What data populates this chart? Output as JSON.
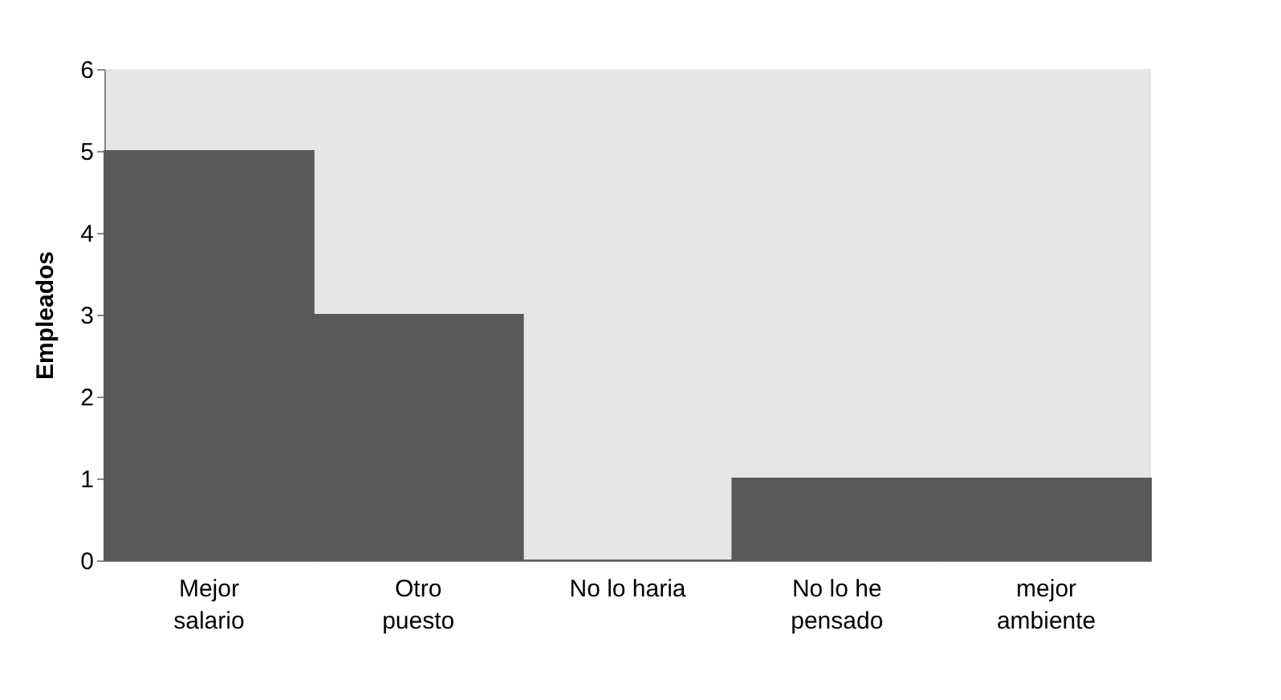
{
  "chart_data": {
    "type": "bar",
    "ylabel": "Empleados",
    "categories": [
      "Mejor\nsalario",
      "Otro\npuesto",
      "No lo haria",
      "No lo he\npensado",
      "mejor\nambiente"
    ],
    "values": [
      5,
      3,
      0,
      1,
      1
    ],
    "color": "#595959",
    "ylim": [
      0,
      6
    ],
    "yticks": [
      0,
      1,
      2,
      3,
      4,
      5,
      6
    ],
    "grid": false
  }
}
